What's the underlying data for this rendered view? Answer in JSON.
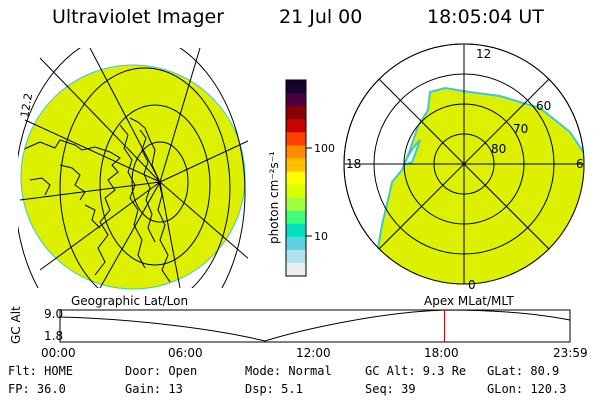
{
  "header": {
    "instrument": "Ultraviolet Imager",
    "date": "21 Jul 00",
    "time": "18:05:04 UT"
  },
  "colorbar": {
    "unit_label": "photon cm⁻²s⁻¹",
    "ticks": [
      "100",
      "10"
    ],
    "scale": "log",
    "colors": [
      "#1a0030",
      "#4a0040",
      "#8b0000",
      "#c80000",
      "#ff4000",
      "#ff8c00",
      "#ffc000",
      "#ffff00",
      "#d8ff00",
      "#a0ff40",
      "#40ff80",
      "#00e0c0",
      "#60d0e0",
      "#b0e0f0",
      "#e8f0f0"
    ]
  },
  "geo_panel": {
    "caption": "Geographic Lat/Lon",
    "edge_label": "12.2",
    "fill_color": "#dcf000"
  },
  "polar_panel": {
    "caption": "Apex MLat/MLT",
    "mlt_labels": {
      "top": "12",
      "left": "18",
      "right": "6",
      "bottom": "0"
    },
    "lat_labels": [
      "60",
      "70",
      "80"
    ],
    "fill_color": "#dcf000"
  },
  "altitude_plot": {
    "ylabel": "GC Alt",
    "yticks": [
      "9.0",
      "1.8"
    ],
    "xticks": [
      "00:00",
      "06:00",
      "12:00",
      "18:00",
      "23:59"
    ],
    "current_time_hours": 18.08,
    "marker_color": "#d00000"
  },
  "status": {
    "row1": {
      "flt": "Flt: HOME",
      "door": "Door: Open",
      "mode": "Mode: Normal",
      "gcalt": "GC Alt: 9.3 Re",
      "glat": "GLat: 80.9"
    },
    "row2": {
      "fp": "FP: 36.0",
      "gain": "Gain: 13",
      "dsp": "Dsp:    5.1",
      "seq": "Seq: 39",
      "glon": "GLon: 120.3"
    }
  }
}
